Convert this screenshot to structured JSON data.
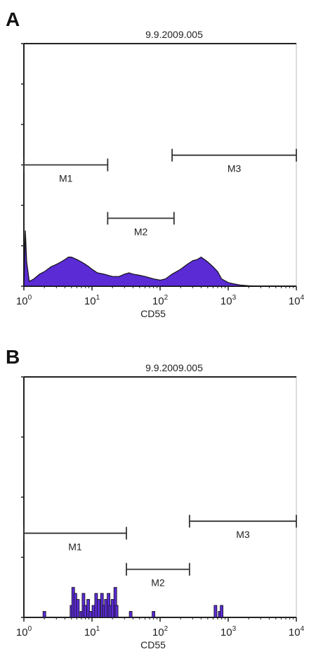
{
  "figure": {
    "labels": [
      "A",
      "B"
    ]
  },
  "chart_data": [
    {
      "type": "area",
      "title": "9.9.2009.005",
      "xlabel": "CD55",
      "ylabel": "",
      "x_scale": "log",
      "xlim": [
        1,
        10000
      ],
      "ylim": [
        0,
        100
      ],
      "x_tick_labels": [
        {
          "base": "10",
          "exp": "0",
          "value": 1
        },
        {
          "base": "10",
          "exp": "1",
          "value": 10
        },
        {
          "base": "10",
          "exp": "2",
          "value": 100
        },
        {
          "base": "10",
          "exp": "3",
          "value": 1000
        },
        {
          "base": "10",
          "exp": "4",
          "value": 10000
        }
      ],
      "fill_color": "#5b2bd6",
      "markers": [
        {
          "label": "M1",
          "range": [
            1,
            17
          ],
          "level": 50
        },
        {
          "label": "M2",
          "range": [
            17,
            160
          ],
          "level": 28
        },
        {
          "label": "M3",
          "range": [
            150,
            10000
          ],
          "level": 54
        }
      ],
      "series": [
        {
          "x": [
            1,
            1.05,
            1.1,
            1.2,
            1.4,
            1.7,
            2,
            2.5,
            3,
            3.5,
            4,
            4.5,
            5,
            6,
            7,
            8,
            9,
            10,
            12,
            15,
            20,
            25,
            30,
            35,
            40,
            50,
            60,
            70,
            80,
            100,
            120,
            150,
            200,
            250,
            300,
            350,
            400,
            450,
            500,
            600,
            700,
            800,
            1000,
            1200,
            1500,
            2000,
            3000,
            5000,
            10000
          ],
          "y": [
            0,
            23,
            10,
            2,
            3,
            5,
            6,
            8,
            9,
            10,
            11,
            12,
            12,
            11,
            10,
            9,
            8,
            7,
            5.5,
            5,
            4,
            4,
            5,
            5.5,
            5,
            4.5,
            4,
            3.5,
            3,
            2.5,
            3,
            5,
            7,
            9,
            10.5,
            11,
            12,
            11,
            10,
            8,
            6,
            3,
            1.5,
            1,
            0.5,
            0.2,
            0,
            0,
            0
          ]
        }
      ]
    },
    {
      "type": "bar",
      "title": "9.9.2009.005",
      "xlabel": "CD55",
      "ylabel": "",
      "x_scale": "log",
      "xlim": [
        1,
        10000
      ],
      "ylim": [
        0,
        40
      ],
      "x_tick_labels": [
        {
          "base": "10",
          "exp": "0",
          "value": 1
        },
        {
          "base": "10",
          "exp": "1",
          "value": 10
        },
        {
          "base": "10",
          "exp": "2",
          "value": 100
        },
        {
          "base": "10",
          "exp": "3",
          "value": 1000
        },
        {
          "base": "10",
          "exp": "4",
          "value": 10000
        }
      ],
      "fill_color": "#5b2bd6",
      "markers": [
        {
          "label": "M1",
          "range": [
            1,
            32
          ],
          "level": 14
        },
        {
          "label": "M2",
          "range": [
            32,
            270
          ],
          "level": 8
        },
        {
          "label": "M3",
          "range": [
            270,
            10000
          ],
          "level": 16
        }
      ],
      "series": [
        {
          "x": [
            2,
            5,
            5.3,
            5.7,
            6.2,
            7,
            7.5,
            8,
            8.8,
            9.5,
            10.5,
            11.5,
            12.5,
            14,
            15,
            16,
            17.5,
            18.5,
            20,
            22,
            23,
            37,
            80,
            650,
            750,
            800
          ],
          "y": [
            1,
            2,
            5,
            4,
            3,
            1,
            4,
            2,
            3,
            1,
            2,
            4,
            3,
            4,
            2,
            3,
            4,
            2,
            3,
            5,
            2,
            1,
            1,
            2,
            1,
            2
          ]
        }
      ]
    }
  ]
}
